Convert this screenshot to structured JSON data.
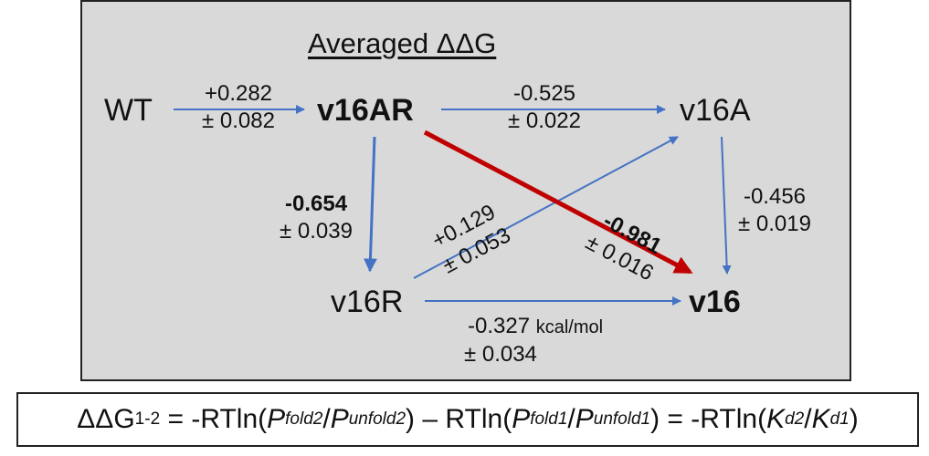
{
  "title": "Averaged ΔΔG",
  "nodes": {
    "wt": "WT",
    "v16ar": "v16AR",
    "v16a": "v16A",
    "v16r": "v16R",
    "v16": "v16"
  },
  "edges": {
    "wt_v16ar": {
      "value": "+0.282",
      "error": "± 0.082"
    },
    "v16ar_v16a": {
      "value": "-0.525",
      "error": "± 0.022"
    },
    "v16ar_v16r": {
      "value": "-0.654",
      "error": "± 0.039"
    },
    "v16a_v16": {
      "value": "-0.456",
      "error": "± 0.019"
    },
    "v16r_v16a": {
      "value": "+0.129",
      "error": "± 0.053"
    },
    "v16ar_v16": {
      "value": "-0.981",
      "error": "± 0.016"
    },
    "v16r_v16": {
      "value": "-0.327",
      "unit": "kcal/mol",
      "error": "± 0.034"
    }
  },
  "colors": {
    "arrow": "#4472c4",
    "highlight": "#c00000",
    "panel": "#d9d9d9"
  },
  "formula": {
    "lhs": "ΔΔG",
    "lhs_sub": "1-2",
    "t1": "= -RTln(",
    "p_fold2": "P",
    "p_fold2_sub": "fold2",
    "slash1": "/",
    "p_unfold2": "P",
    "p_unfold2_sub": "unfold2",
    "t2": ") – RTln(",
    "p_fold1": "P",
    "p_fold1_sub": "fold1",
    "slash2": "/",
    "p_unfold1": "P",
    "p_unfold1_sub": "unfold1",
    "t3": ") = -RTln(",
    "k_d2": "K",
    "k_d2_sub": "d2",
    "slash3": "/",
    "k_d1": "K",
    "k_d1_sub": "d1",
    "t4": ")"
  }
}
